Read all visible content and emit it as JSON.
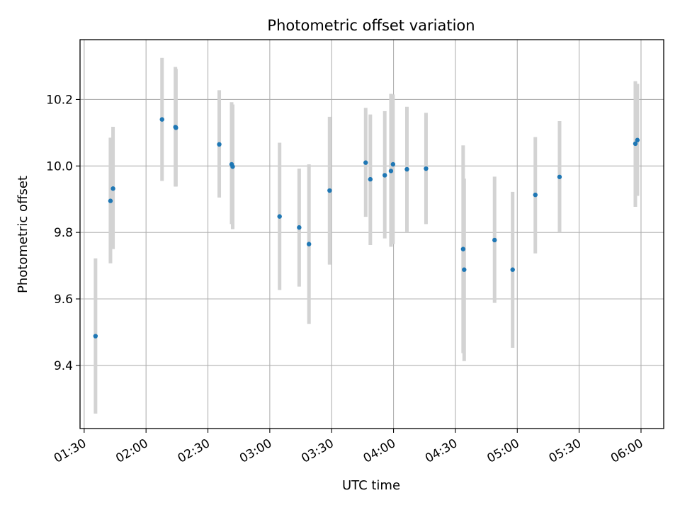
{
  "chart_data": {
    "type": "scatter",
    "title": "Photometric offset variation",
    "xlabel": "UTC time",
    "ylabel": "Photometric offset",
    "x_tick_labels": [
      "01:30",
      "02:00",
      "02:30",
      "03:00",
      "03:30",
      "04:00",
      "04:30",
      "05:00",
      "05:30",
      "06:00"
    ],
    "x_ticks_minutes_utc": [
      90,
      120,
      150,
      180,
      210,
      240,
      270,
      300,
      330,
      360
    ],
    "xlim_utc": [
      "01:28",
      "06:11"
    ],
    "y_ticks": [
      9.4,
      9.6,
      9.8,
      10.0,
      10.2
    ],
    "y_tick_labels": [
      "9.4",
      "9.6",
      "9.8",
      "10.0",
      "10.2"
    ],
    "ylim": [
      9.21,
      10.38
    ],
    "grid": true,
    "colors": {
      "points": "#1f77b4",
      "error_bars": "#d3d3d3",
      "grid": "#b0b0b0",
      "axes": "#000000"
    },
    "series": [
      {
        "points": [
          {
            "x": "01:35:30",
            "y": 9.488,
            "ylow": 9.255,
            "yhigh": 9.722
          },
          {
            "x": "01:42:45",
            "y": 9.895,
            "ylow": 9.707,
            "yhigh": 10.085
          },
          {
            "x": "01:44:00",
            "y": 9.932,
            "ylow": 9.75,
            "yhigh": 10.118
          },
          {
            "x": "02:07:45",
            "y": 10.14,
            "ylow": 9.955,
            "yhigh": 10.325
          },
          {
            "x": "02:14:15",
            "y": 10.117,
            "ylow": 9.938,
            "yhigh": 10.298
          },
          {
            "x": "02:14:30",
            "y": 10.115,
            "ylow": 9.938,
            "yhigh": 10.292
          },
          {
            "x": "02:35:30",
            "y": 10.065,
            "ylow": 9.905,
            "yhigh": 10.228
          },
          {
            "x": "02:41:30",
            "y": 10.005,
            "ylow": 9.825,
            "yhigh": 10.192
          },
          {
            "x": "02:42:00",
            "y": 9.998,
            "ylow": 9.81,
            "yhigh": 10.185
          },
          {
            "x": "03:04:45",
            "y": 9.848,
            "ylow": 9.627,
            "yhigh": 10.07
          },
          {
            "x": "03:14:15",
            "y": 9.815,
            "ylow": 9.637,
            "yhigh": 9.992
          },
          {
            "x": "03:19:00",
            "y": 9.765,
            "ylow": 9.525,
            "yhigh": 10.005
          },
          {
            "x": "03:29:00",
            "y": 9.926,
            "ylow": 9.703,
            "yhigh": 10.148
          },
          {
            "x": "03:46:30",
            "y": 10.01,
            "ylow": 9.847,
            "yhigh": 10.175
          },
          {
            "x": "03:48:45",
            "y": 9.96,
            "ylow": 9.762,
            "yhigh": 10.155
          },
          {
            "x": "03:55:45",
            "y": 9.972,
            "ylow": 9.782,
            "yhigh": 10.165
          },
          {
            "x": "03:58:45",
            "y": 9.985,
            "ylow": 9.757,
            "yhigh": 10.217
          },
          {
            "x": "03:59:45",
            "y": 10.005,
            "ylow": 9.765,
            "yhigh": 10.215
          },
          {
            "x": "04:06:30",
            "y": 9.99,
            "ylow": 9.8,
            "yhigh": 10.178
          },
          {
            "x": "04:15:45",
            "y": 9.992,
            "ylow": 9.825,
            "yhigh": 10.16
          },
          {
            "x": "04:33:45",
            "y": 9.75,
            "ylow": 9.437,
            "yhigh": 10.062
          },
          {
            "x": "04:34:15",
            "y": 9.688,
            "ylow": 9.413,
            "yhigh": 9.962
          },
          {
            "x": "04:49:00",
            "y": 9.777,
            "ylow": 9.588,
            "yhigh": 9.968
          },
          {
            "x": "04:57:45",
            "y": 9.688,
            "ylow": 9.453,
            "yhigh": 9.922
          },
          {
            "x": "05:08:45",
            "y": 9.913,
            "ylow": 9.737,
            "yhigh": 10.087
          },
          {
            "x": "05:20:30",
            "y": 9.967,
            "ylow": 9.8,
            "yhigh": 10.135
          },
          {
            "x": "05:57:15",
            "y": 10.067,
            "ylow": 9.877,
            "yhigh": 10.255
          },
          {
            "x": "05:58:15",
            "y": 10.078,
            "ylow": 9.91,
            "yhigh": 10.247
          }
        ]
      }
    ]
  }
}
